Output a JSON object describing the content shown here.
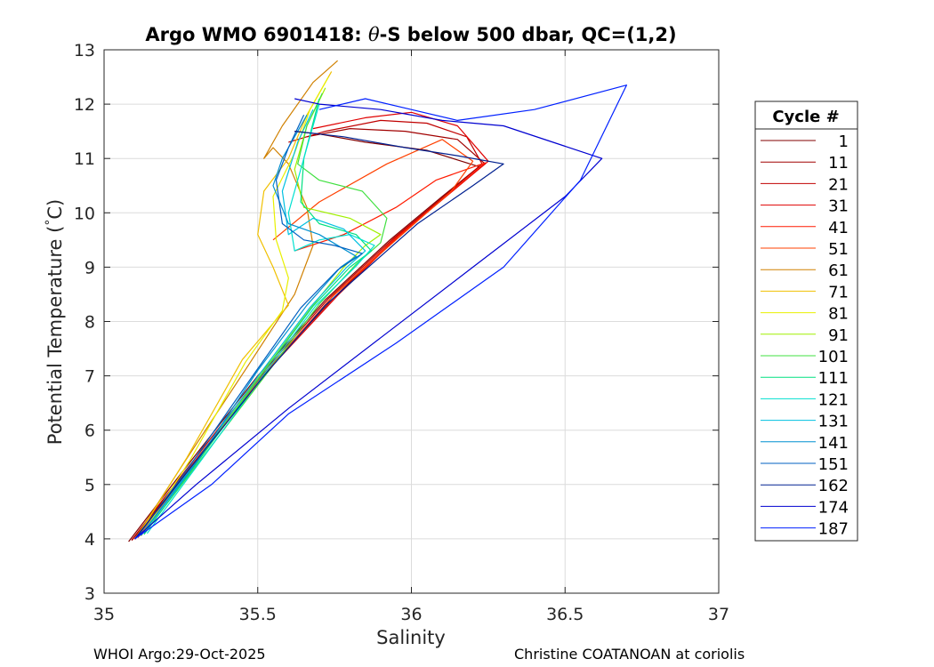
{
  "footer": {
    "left": "WHOI Argo:29-Oct-2025",
    "right": "Christine COATANOAN at coriolis"
  },
  "chart_data": {
    "type": "line",
    "title_prefix": "Argo WMO 6901418: ",
    "title_symbol": "θ",
    "title_suffix": "-S below 500 dbar,  QC=(1,2)",
    "xlabel": "Salinity",
    "ylabel_prefix": "Potential Temperature (",
    "ylabel_degree": "°",
    "ylabel_suffix": "C)",
    "xlim": [
      35,
      37
    ],
    "ylim": [
      3,
      13
    ],
    "xticks": [
      35,
      35.5,
      36,
      36.5,
      37
    ],
    "xtick_labels": [
      "35",
      "35.5",
      "36",
      "36.5",
      "37"
    ],
    "yticks": [
      3,
      4,
      5,
      6,
      7,
      8,
      9,
      10,
      11,
      12,
      13
    ],
    "ytick_labels": [
      "3",
      "4",
      "5",
      "6",
      "7",
      "8",
      "9",
      "10",
      "11",
      "12",
      "13"
    ],
    "grid": true,
    "legend_title": "Cycle #",
    "legend_position": "outside-right",
    "series": [
      {
        "name": "1",
        "color": "#800000",
        "s": [
          35.08,
          35.25,
          35.5,
          35.72,
          35.93,
          36.1,
          36.22,
          36.05,
          35.85,
          35.7,
          35.62
        ],
        "t": [
          3.95,
          5.2,
          7.0,
          8.4,
          9.5,
          10.3,
          10.85,
          11.15,
          11.3,
          11.45,
          11.5
        ]
      },
      {
        "name": "11",
        "color": "#a00000",
        "s": [
          35.09,
          35.27,
          35.52,
          35.75,
          35.95,
          36.12,
          36.24,
          36.15,
          35.98,
          35.8,
          35.66
        ],
        "t": [
          3.97,
          5.25,
          7.05,
          8.45,
          9.55,
          10.35,
          10.9,
          11.35,
          11.5,
          11.55,
          11.4
        ]
      },
      {
        "name": "21",
        "color": "#c00000",
        "s": [
          35.09,
          35.26,
          35.51,
          35.73,
          35.94,
          36.11,
          36.23,
          36.18,
          36.05,
          35.9,
          35.72,
          35.6
        ],
        "t": [
          3.98,
          5.22,
          7.02,
          8.42,
          9.52,
          10.32,
          10.9,
          11.4,
          11.65,
          11.7,
          11.5,
          11.3
        ]
      },
      {
        "name": "31",
        "color": "#e00000",
        "s": [
          35.1,
          35.28,
          35.53,
          35.76,
          35.96,
          36.13,
          36.25,
          36.15,
          36.0,
          35.85,
          35.68
        ],
        "t": [
          4.0,
          5.28,
          7.08,
          8.48,
          9.58,
          10.38,
          10.95,
          11.6,
          11.85,
          11.75,
          11.55
        ]
      },
      {
        "name": "41",
        "color": "#ff1a00",
        "s": [
          35.1,
          35.27,
          35.52,
          35.74,
          35.95,
          36.12,
          36.24,
          36.08,
          35.95,
          35.78,
          35.62
        ],
        "t": [
          3.99,
          5.24,
          7.04,
          8.44,
          9.54,
          10.34,
          10.92,
          10.6,
          10.1,
          9.6,
          9.3
        ]
      },
      {
        "name": "51",
        "color": "#ff4000",
        "s": [
          35.11,
          35.28,
          35.53,
          35.75,
          35.97,
          36.13,
          36.2,
          36.1,
          35.92,
          35.7,
          35.55
        ],
        "t": [
          4.02,
          5.3,
          7.1,
          8.5,
          9.6,
          10.4,
          10.95,
          11.35,
          10.9,
          10.2,
          9.5
        ]
      },
      {
        "name": "61",
        "color": "#d08000",
        "s": [
          35.1,
          35.26,
          35.47,
          35.62,
          35.68,
          35.66,
          35.6,
          35.55,
          35.52,
          35.58,
          35.68,
          35.76
        ],
        "t": [
          4.0,
          5.4,
          7.2,
          8.5,
          9.4,
          10.1,
          10.9,
          11.2,
          11.0,
          11.6,
          12.4,
          12.8
        ]
      },
      {
        "name": "71",
        "color": "#f0c000",
        "s": [
          35.11,
          35.27,
          35.45,
          35.6,
          35.55,
          35.5,
          35.52,
          35.6,
          35.66,
          35.74
        ],
        "t": [
          4.05,
          5.5,
          7.3,
          8.3,
          9.0,
          9.6,
          10.4,
          11.0,
          11.8,
          12.6
        ]
      },
      {
        "name": "81",
        "color": "#e8f000",
        "s": [
          35.12,
          35.28,
          35.46,
          35.58,
          35.6,
          35.56,
          35.55,
          35.62,
          35.67,
          35.73
        ],
        "t": [
          4.05,
          5.45,
          7.25,
          8.2,
          8.8,
          9.5,
          10.3,
          11.1,
          11.9,
          12.5
        ]
      },
      {
        "name": "91",
        "color": "#a0f000",
        "s": [
          35.12,
          35.3,
          35.52,
          35.68,
          35.78,
          35.85,
          35.9,
          35.8,
          35.65,
          35.62,
          35.66,
          35.72
        ],
        "t": [
          4.08,
          5.4,
          7.1,
          8.3,
          9.0,
          9.4,
          9.6,
          9.9,
          10.1,
          10.8,
          11.6,
          12.3
        ]
      },
      {
        "name": "101",
        "color": "#40e040",
        "s": [
          35.13,
          35.31,
          35.54,
          35.7,
          35.82,
          35.9,
          35.92,
          35.84,
          35.7,
          35.63,
          35.66,
          35.71
        ],
        "t": [
          4.1,
          5.42,
          7.12,
          8.32,
          9.05,
          9.45,
          9.9,
          10.4,
          10.6,
          10.9,
          11.6,
          12.2
        ]
      },
      {
        "name": "111",
        "color": "#00e080",
        "s": [
          35.13,
          35.3,
          35.52,
          35.68,
          35.8,
          35.87,
          35.82,
          35.7,
          35.64,
          35.65,
          35.7
        ],
        "t": [
          4.08,
          5.38,
          7.08,
          8.28,
          9.0,
          9.3,
          9.6,
          9.8,
          10.2,
          11.0,
          12.1
        ]
      },
      {
        "name": "121",
        "color": "#00e0d0",
        "s": [
          35.14,
          35.31,
          35.53,
          35.69,
          35.82,
          35.88,
          35.8,
          35.7,
          35.62,
          35.6,
          35.66,
          35.7
        ],
        "t": [
          4.1,
          5.4,
          7.1,
          8.3,
          9.02,
          9.4,
          9.6,
          9.5,
          9.3,
          10.0,
          11.2,
          12.0
        ]
      },
      {
        "name": "131",
        "color": "#00c0e0",
        "s": [
          35.12,
          35.29,
          35.51,
          35.67,
          35.79,
          35.85,
          35.78,
          35.68,
          35.6,
          35.58,
          35.63,
          35.68
        ],
        "t": [
          4.07,
          5.36,
          7.06,
          8.26,
          9.0,
          9.3,
          9.7,
          9.9,
          9.6,
          10.4,
          11.3,
          11.9
        ]
      },
      {
        "name": "141",
        "color": "#0090d0",
        "s": [
          35.12,
          35.3,
          35.5,
          35.66,
          35.77,
          35.82,
          35.7,
          35.6,
          35.55,
          35.58,
          35.62,
          35.66
        ],
        "t": [
          4.06,
          5.4,
          7.1,
          8.3,
          9.0,
          9.2,
          9.6,
          9.8,
          10.5,
          11.0,
          11.4,
          11.8
        ]
      },
      {
        "name": "151",
        "color": "#0060c0",
        "s": [
          35.11,
          35.28,
          35.49,
          35.64,
          35.76,
          35.84,
          35.75,
          35.65,
          35.58,
          35.56,
          35.6,
          35.65
        ],
        "t": [
          4.05,
          5.35,
          7.05,
          8.25,
          8.95,
          9.25,
          9.4,
          9.5,
          9.8,
          10.6,
          11.2,
          11.8
        ]
      },
      {
        "name": "162",
        "color": "#002090",
        "s": [
          35.1,
          35.28,
          35.52,
          35.72,
          35.9,
          36.02,
          36.2,
          36.3,
          36.15,
          35.98,
          35.78,
          35.62
        ],
        "t": [
          4.0,
          5.3,
          7.0,
          8.3,
          9.2,
          9.8,
          10.5,
          10.9,
          11.05,
          11.2,
          11.4,
          11.5
        ]
      },
      {
        "name": "174",
        "color": "#0000d0",
        "s": [
          35.1,
          35.3,
          35.6,
          35.9,
          36.2,
          36.5,
          36.62,
          36.3,
          36.1,
          35.9,
          35.7,
          35.62
        ],
        "t": [
          4.0,
          5.0,
          6.4,
          7.7,
          9.0,
          10.3,
          11.0,
          11.6,
          11.7,
          11.9,
          12.0,
          12.1
        ]
      },
      {
        "name": "187",
        "color": "#0020ff",
        "s": [
          35.1,
          35.35,
          35.6,
          35.95,
          36.3,
          36.55,
          36.7,
          36.4,
          36.15,
          36.0,
          35.85,
          35.7
        ],
        "t": [
          4.0,
          5.0,
          6.3,
          7.6,
          9.0,
          10.6,
          12.35,
          11.9,
          11.7,
          11.9,
          12.1,
          11.9
        ]
      }
    ]
  }
}
